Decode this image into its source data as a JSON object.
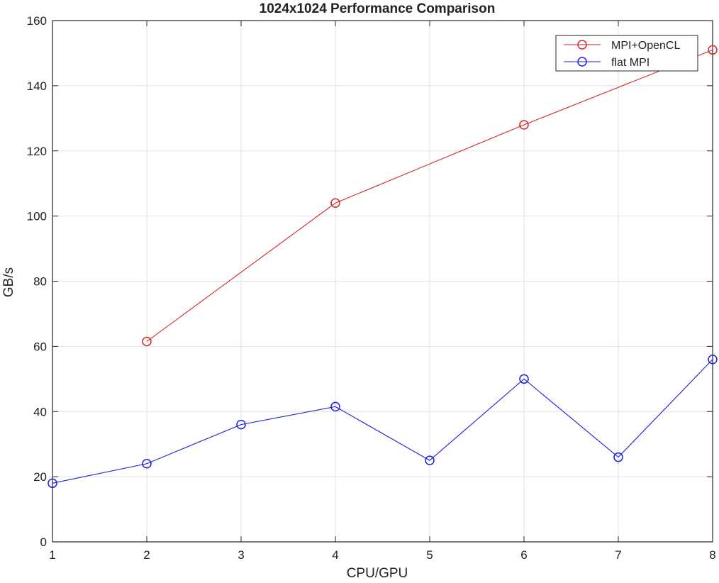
{
  "chart_data": {
    "type": "line",
    "title": "1024x1024 Performance Comparison",
    "xlabel": "CPU/GPU",
    "ylabel": "GB/s",
    "xlim": [
      1,
      8
    ],
    "ylim": [
      0,
      160
    ],
    "xticks": [
      1,
      2,
      3,
      4,
      5,
      6,
      7,
      8
    ],
    "yticks": [
      0,
      20,
      40,
      60,
      80,
      100,
      120,
      140,
      160
    ],
    "grid": true,
    "legend_position": "top-right",
    "marker": "circle",
    "series": [
      {
        "name": "MPI+OpenCL",
        "color": "#d62728",
        "x": [
          2,
          4,
          6,
          8
        ],
        "y": [
          61.5,
          104,
          128,
          151
        ]
      },
      {
        "name": "flat MPI",
        "color": "#1f1fe0",
        "x": [
          1,
          2,
          3,
          4,
          5,
          6,
          7,
          8
        ],
        "y": [
          18,
          24,
          36,
          41.5,
          25,
          50,
          26,
          56
        ]
      }
    ]
  }
}
